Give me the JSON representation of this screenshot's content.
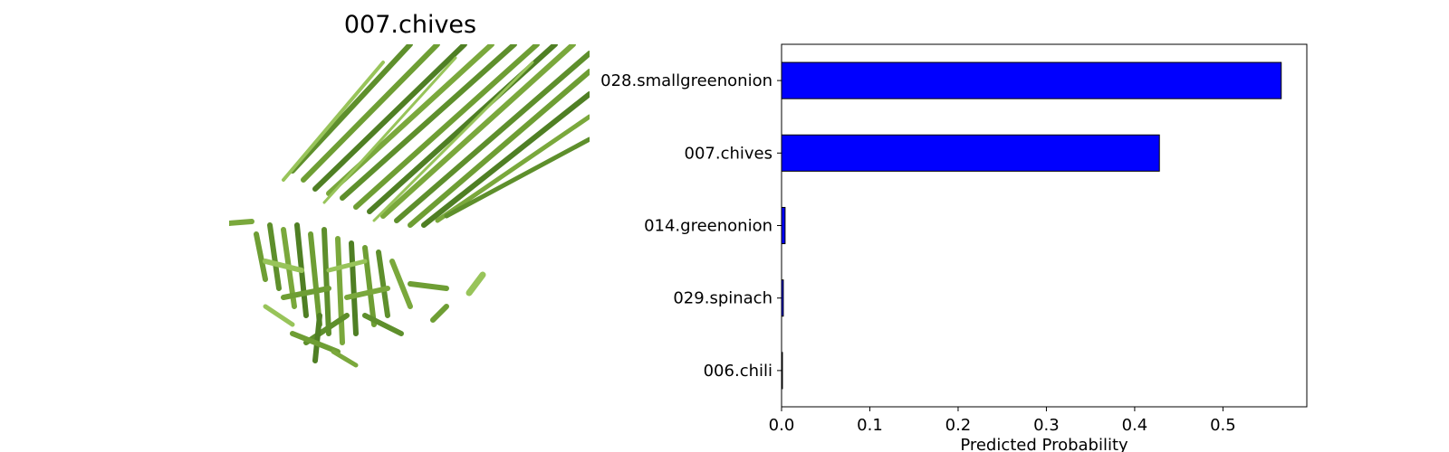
{
  "image_panel": {
    "title": "007.chives"
  },
  "colors": {
    "bar_fill": "#0000ff",
    "bar_edge": "#000000",
    "stem_dark": "#4f7f24",
    "stem_mid": "#6e9e34",
    "stem_light": "#98c45a"
  },
  "chart_data": {
    "type": "bar",
    "orientation": "horizontal",
    "categories": [
      "028.smallgreenonion",
      "007.chives",
      "014.greenonion",
      "029.spinach",
      "006.chili"
    ],
    "values": [
      0.566,
      0.428,
      0.004,
      0.002,
      0.001
    ],
    "xlabel": "Predicted Probability",
    "ylabel": "",
    "xlim": [
      0,
      0.595
    ],
    "xticks": [
      0.0,
      0.1,
      0.2,
      0.3,
      0.4,
      0.5
    ],
    "xtick_labels": [
      "0.0",
      "0.1",
      "0.2",
      "0.3",
      "0.4",
      "0.5"
    ],
    "grid": false,
    "legend": "none"
  }
}
